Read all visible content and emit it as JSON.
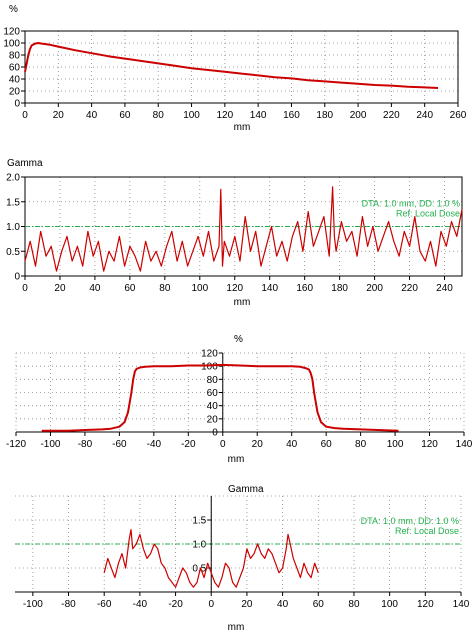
{
  "chart_data": [
    {
      "type": "line",
      "ylabel": "%",
      "xlabel": "mm",
      "xlim": [
        0,
        260
      ],
      "ylim": [
        0,
        120
      ],
      "xticks": [
        0,
        20,
        40,
        60,
        80,
        100,
        120,
        140,
        160,
        180,
        200,
        220,
        240,
        260
      ],
      "yticks": [
        0,
        20,
        40,
        60,
        80,
        100,
        120
      ],
      "grid": true,
      "line_color": "#cc0000",
      "series": [
        {
          "x": [
            0,
            1,
            2,
            3,
            4,
            6,
            8,
            10,
            15,
            20,
            30,
            40,
            50,
            60,
            70,
            80,
            90,
            100,
            110,
            120,
            130,
            140,
            150,
            160,
            170,
            180,
            190,
            200,
            210,
            220,
            230,
            240,
            248
          ],
          "y": [
            52,
            66,
            80,
            90,
            96,
            99,
            100,
            99,
            97,
            94,
            88,
            83,
            78,
            74,
            70,
            66,
            62,
            58,
            55,
            52,
            49,
            46,
            43,
            41,
            38,
            36,
            34,
            32,
            30,
            29,
            27,
            26,
            25
          ]
        }
      ]
    },
    {
      "type": "line",
      "ylabel": "Gamma",
      "xlabel": "mm",
      "xlim": [
        0,
        250
      ],
      "ylim": [
        0,
        2
      ],
      "xticks": [
        0,
        20,
        40,
        60,
        80,
        100,
        120,
        140,
        160,
        180,
        200,
        220,
        240
      ],
      "yticks": [
        0,
        0.5,
        1,
        1.5,
        2
      ],
      "grid": true,
      "threshold": 1.0,
      "line_color": "#cc0000",
      "threshold_color": "#22b14c",
      "annotations": [
        "DTA: 1.0 mm, DD: 1.0 %",
        "Ref: Local Dose"
      ],
      "series": [
        {
          "x": [
            0,
            3,
            6,
            9,
            12,
            15,
            18,
            21,
            24,
            27,
            30,
            33,
            36,
            39,
            42,
            45,
            48,
            51,
            54,
            57,
            60,
            63,
            66,
            69,
            72,
            75,
            78,
            81,
            84,
            87,
            90,
            93,
            96,
            99,
            102,
            105,
            108,
            111,
            112,
            113,
            114,
            117,
            120,
            123,
            126,
            129,
            132,
            135,
            138,
            141,
            144,
            147,
            150,
            153,
            156,
            159,
            162,
            165,
            168,
            171,
            174,
            176,
            177,
            178,
            181,
            184,
            187,
            190,
            193,
            196,
            199,
            202,
            205,
            208,
            211,
            214,
            217,
            220,
            223,
            226,
            229,
            232,
            235,
            238,
            241,
            244,
            247,
            250
          ],
          "y": [
            0.3,
            0.7,
            0.2,
            0.9,
            0.4,
            0.6,
            0.1,
            0.5,
            0.8,
            0.3,
            0.6,
            0.2,
            0.9,
            0.4,
            0.7,
            0.1,
            0.5,
            0.3,
            0.8,
            0.2,
            0.6,
            0.4,
            0.1,
            0.7,
            0.3,
            0.5,
            0.2,
            0.6,
            0.9,
            0.3,
            0.7,
            0.2,
            0.5,
            0.8,
            0.4,
            0.9,
            0.3,
            0.6,
            1.75,
            0.2,
            0.7,
            0.4,
            0.8,
            0.3,
            1.2,
            0.5,
            0.9,
            0.2,
            0.6,
            1.0,
            0.4,
            0.7,
            0.3,
            0.8,
            1.1,
            0.5,
            1.3,
            0.6,
            0.9,
            1.2,
            0.4,
            1.8,
            0.8,
            0.5,
            1.1,
            0.7,
            0.9,
            0.4,
            1.2,
            0.6,
            1.0,
            0.5,
            0.8,
            1.1,
            0.7,
            0.4,
            0.9,
            0.6,
            1.2,
            0.5,
            0.3,
            0.7,
            0.2,
            0.9,
            0.6,
            1.1,
            0.8,
            1.35
          ]
        }
      ]
    },
    {
      "type": "line",
      "ylabel": "%",
      "xlabel": "mm",
      "xlim": [
        -120,
        140
      ],
      "ylim": [
        0,
        120
      ],
      "xticks": [
        -120,
        -100,
        -80,
        -60,
        -40,
        -20,
        0,
        20,
        40,
        60,
        80,
        100,
        120,
        140
      ],
      "yticks": [
        0,
        20,
        40,
        60,
        80,
        100,
        120
      ],
      "grid": true,
      "line_color": "#cc0000",
      "series": [
        {
          "x": [
            -105,
            -90,
            -80,
            -70,
            -65,
            -60,
            -57,
            -55,
            -53,
            -52,
            -51,
            -50,
            -48,
            -45,
            -40,
            -30,
            -20,
            -10,
            0,
            10,
            20,
            30,
            40,
            45,
            48,
            50,
            51,
            52,
            53,
            55,
            57,
            60,
            65,
            70,
            80,
            90,
            102
          ],
          "y": [
            2,
            2,
            3,
            4,
            5,
            8,
            15,
            30,
            60,
            80,
            92,
            96,
            98,
            99,
            100,
            100,
            101,
            101,
            102,
            101,
            100,
            100,
            100,
            99,
            97,
            95,
            90,
            80,
            60,
            30,
            15,
            8,
            6,
            5,
            4,
            3,
            2
          ]
        }
      ]
    },
    {
      "type": "line",
      "ylabel": "Gamma",
      "xlabel": "mm",
      "xlim": [
        -110,
        140
      ],
      "ylim": [
        0,
        2
      ],
      "xticks": [
        -100,
        -80,
        -60,
        -40,
        -20,
        0,
        20,
        40,
        60,
        80,
        100,
        120,
        140
      ],
      "yticks": [
        0.5,
        1.0,
        1.5
      ],
      "grid": true,
      "threshold": 1.0,
      "line_color": "#cc0000",
      "threshold_color": "#22b14c",
      "annotations": [
        "DTA: 1.0 mm, DD: 1.0 %",
        "Ref: Local Dose"
      ],
      "series": [
        {
          "x": [
            -60,
            -58,
            -56,
            -54,
            -52,
            -50,
            -48,
            -46,
            -45,
            -44,
            -42,
            -40,
            -38,
            -36,
            -34,
            -32,
            -30,
            -28,
            -26,
            -24,
            -22,
            -20,
            -18,
            -16,
            -14,
            -12,
            -10,
            -8,
            -6,
            -4,
            -2,
            0,
            2,
            4,
            6,
            8,
            10,
            12,
            14,
            16,
            18,
            20,
            22,
            24,
            26,
            28,
            30,
            32,
            34,
            36,
            38,
            40,
            42,
            43,
            44,
            46,
            48,
            50,
            52,
            54,
            56,
            58,
            60
          ],
          "y": [
            0.4,
            0.7,
            0.5,
            0.3,
            0.6,
            0.8,
            0.5,
            1.1,
            1.3,
            0.9,
            1.0,
            1.2,
            0.9,
            0.7,
            0.8,
            1.0,
            0.9,
            0.6,
            0.5,
            0.3,
            0.2,
            0.1,
            0.3,
            0.5,
            0.4,
            0.2,
            0.1,
            0.2,
            0.5,
            0.3,
            0.6,
            0.4,
            0.2,
            0.1,
            0.3,
            0.6,
            0.5,
            0.2,
            0.1,
            0.3,
            0.5,
            0.9,
            0.7,
            0.8,
            1.0,
            0.8,
            0.7,
            0.9,
            0.8,
            0.6,
            0.4,
            0.5,
            0.9,
            1.2,
            1.05,
            0.7,
            0.5,
            0.3,
            0.6,
            0.4,
            0.3,
            0.6,
            0.4
          ]
        }
      ]
    }
  ]
}
